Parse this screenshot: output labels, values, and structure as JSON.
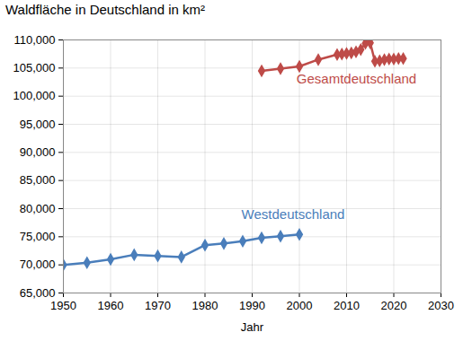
{
  "chart_data": {
    "type": "line",
    "title": "Waldfläche in Deutschland in km²",
    "x_label": "Jahr",
    "x": [
      1950,
      1955,
      1960,
      1965,
      1970,
      1975,
      1980,
      1984,
      1988,
      1992,
      1996,
      2000,
      2004,
      2008,
      2009,
      2010,
      2011,
      2012,
      2013,
      2014,
      2015,
      2016,
      2017,
      2018,
      2019,
      2020,
      2021,
      2022
    ],
    "series": [
      {
        "name": "Westdeutschland",
        "color": "#4a7ebb",
        "marker": "diamond",
        "values": [
          70000,
          70400,
          71000,
          71800,
          71600,
          71400,
          73500,
          73800,
          74200,
          74800,
          75100,
          75400,
          null,
          null,
          null,
          null,
          null,
          null,
          null,
          null,
          null,
          null,
          null,
          null,
          null,
          null,
          null,
          null
        ]
      },
      {
        "name": "Gesamtdeutschland",
        "color": "#be4b48",
        "marker": "diamond",
        "values": [
          null,
          null,
          null,
          null,
          null,
          null,
          null,
          null,
          null,
          104500,
          104900,
          105300,
          106500,
          107400,
          107500,
          107600,
          107700,
          107900,
          108300,
          109400,
          109500,
          106200,
          106300,
          106500,
          106600,
          106600,
          106700,
          106700
        ]
      }
    ],
    "xlim": [
      1950,
      2030
    ],
    "xticks": [
      1950,
      1960,
      1970,
      1980,
      1990,
      2000,
      2010,
      2020,
      2030
    ],
    "ylim": [
      65000,
      110000
    ],
    "yticks": [
      {
        "value": 65000,
        "label": "65,000"
      },
      {
        "value": 70000,
        "label": "70,000"
      },
      {
        "value": 75000,
        "label": "75,000"
      },
      {
        "value": 80000,
        "label": "80,000"
      },
      {
        "value": 85000,
        "label": "85,000"
      },
      {
        "value": 90000,
        "label": "90,000"
      },
      {
        "value": 95000,
        "label": "95,000"
      },
      {
        "value": 100000,
        "label": "100,000"
      },
      {
        "value": 105000,
        "label": "105,000"
      },
      {
        "value": 110000,
        "label": "110,000"
      }
    ],
    "grid": true
  }
}
